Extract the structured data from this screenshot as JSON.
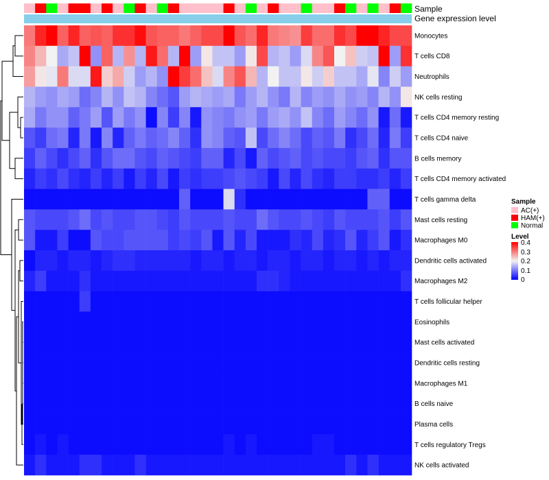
{
  "chart_data": {
    "type": "heatmap",
    "title": "",
    "annotation_tracks": [
      "Sample",
      "Gene expression level"
    ],
    "sample_groups": [
      "AC(+)",
      "HAM(+)",
      "Normal",
      "AC(+)",
      "HAM(+)",
      "HAM(+)",
      "AC(+)",
      "HAM(+)",
      "AC(+)",
      "Normal",
      "HAM(+)",
      "AC(+)",
      "Normal",
      "HAM(+)",
      "AC(+)",
      "AC(+)",
      "AC(+)",
      "AC(+)",
      "HAM(+)",
      "AC(+)",
      "Normal",
      "AC(+)",
      "HAM(+)",
      "AC(+)",
      "AC(+)",
      "Normal",
      "AC(+)",
      "AC(+)",
      "HAM(+)",
      "Normal",
      "AC(+)",
      "Normal",
      "AC(+)",
      "HAM(+)",
      "Normal"
    ],
    "expression_track_color": "#87CEEB",
    "rows": [
      "Monocytes",
      "T cells CD8",
      "Neutrophils",
      "NK cells resting",
      "T cells CD4 memory resting",
      "T cells CD4 naive",
      "B cells memory",
      "T cells CD4 memory activated",
      "T cells gamma delta",
      "Mast cells resting",
      "Macrophages M0",
      "Dendritic cells activated",
      "Macrophages M2",
      "T cells follicular helper",
      "Eosinophils",
      "Mast cells activated",
      "Dendritic cells resting",
      "Macrophages M1",
      "B cells naive",
      "Plasma cells",
      "T cells regulatory  Tregs",
      "NK cells activated"
    ],
    "values": [
      [
        0.3,
        0.37,
        0.4,
        0.32,
        0.37,
        0.32,
        0.33,
        0.32,
        0.36,
        0.36,
        0.39,
        0.33,
        0.32,
        0.32,
        0.3,
        0.32,
        0.34,
        0.34,
        0.4,
        0.33,
        0.31,
        0.37,
        0.3,
        0.29,
        0.28,
        0.35,
        0.31,
        0.31,
        0.36,
        0.34,
        0.4,
        0.4,
        0.37,
        0.34,
        0.34
      ],
      [
        0.29,
        0.25,
        0.2,
        0.14,
        0.16,
        0.4,
        0.12,
        0.32,
        0.15,
        0.28,
        0.15,
        0.38,
        0.31,
        0.15,
        0.4,
        0.13,
        0.21,
        0.16,
        0.16,
        0.13,
        0.21,
        0.34,
        0.15,
        0.16,
        0.13,
        0.18,
        0.29,
        0.33,
        0.2,
        0.24,
        0.17,
        0.16,
        0.4,
        0.13,
        0.36
      ],
      [
        0.27,
        0.21,
        0.19,
        0.3,
        0.18,
        0.18,
        0.38,
        0.23,
        0.26,
        0.17,
        0.13,
        0.15,
        0.12,
        0.4,
        0.35,
        0.31,
        0.24,
        0.18,
        0.29,
        0.33,
        0.25,
        0.15,
        0.2,
        0.16,
        0.16,
        0.21,
        0.17,
        0.23,
        0.16,
        0.16,
        0.14,
        0.19,
        0.11,
        0.17,
        0.13
      ],
      [
        0.15,
        0.13,
        0.12,
        0.14,
        0.13,
        0.09,
        0.11,
        0.15,
        0.12,
        0.16,
        0.15,
        0.11,
        0.09,
        0.07,
        0.13,
        0.15,
        0.14,
        0.13,
        0.14,
        0.1,
        0.13,
        0.15,
        0.12,
        0.1,
        0.15,
        0.11,
        0.13,
        0.12,
        0.14,
        0.12,
        0.13,
        0.11,
        0.15,
        0.12,
        0.21
      ],
      [
        0.14,
        0.1,
        0.12,
        0.12,
        0.08,
        0.1,
        0.13,
        0.07,
        0.13,
        0.1,
        0.12,
        0.01,
        0.11,
        0.05,
        0.11,
        0.02,
        0.12,
        0.11,
        0.1,
        0.12,
        0.13,
        0.1,
        0.13,
        0.14,
        0.12,
        0.16,
        0.11,
        0.09,
        0.13,
        0.11,
        0.09,
        0.12,
        0.02,
        0.09,
        0.02
      ],
      [
        0.07,
        0.05,
        0.09,
        0.1,
        0.03,
        0.1,
        0.02,
        0.11,
        0.03,
        0.08,
        0.1,
        0.08,
        0.09,
        0.11,
        0.08,
        0.04,
        0.12,
        0.11,
        0.08,
        0.07,
        0.16,
        0.06,
        0.09,
        0.11,
        0.09,
        0.06,
        0.08,
        0.07,
        0.1,
        0.04,
        0.06,
        0.09,
        0.03,
        0.1,
        0.05
      ],
      [
        0.05,
        0.08,
        0.06,
        0.04,
        0.06,
        0.08,
        0.04,
        0.07,
        0.09,
        0.09,
        0.07,
        0.06,
        0.08,
        0.07,
        0.06,
        0.05,
        0.08,
        0.08,
        0.03,
        0.06,
        0.02,
        0.08,
        0.06,
        0.07,
        0.08,
        0.06,
        0.07,
        0.06,
        0.06,
        0.05,
        0.07,
        0.08,
        0.04,
        0.07,
        0.07
      ],
      [
        0.03,
        0.05,
        0.04,
        0.06,
        0.04,
        0.03,
        0.05,
        0.03,
        0.05,
        0.02,
        0.05,
        0.03,
        0.06,
        0.02,
        0.05,
        0.04,
        0.05,
        0.05,
        0.06,
        0.07,
        0.06,
        0.05,
        0.02,
        0.06,
        0.03,
        0.06,
        0.04,
        0.03,
        0.05,
        0.05,
        0.04,
        0.04,
        0.05,
        0.03,
        0.05
      ],
      [
        0.01,
        0.01,
        0.01,
        0.01,
        0.01,
        0.01,
        0.01,
        0.01,
        0.01,
        0.01,
        0.01,
        0.01,
        0.01,
        0.01,
        0.08,
        0.01,
        0.01,
        0.01,
        0.18,
        0.04,
        0.01,
        0.01,
        0.01,
        0.01,
        0.01,
        0.01,
        0.01,
        0.01,
        0.01,
        0.01,
        0.01,
        0.08,
        0.08,
        0.01,
        0.01
      ],
      [
        0.07,
        0.06,
        0.06,
        0.06,
        0.07,
        0.09,
        0.06,
        0.07,
        0.06,
        0.06,
        0.07,
        0.07,
        0.06,
        0.05,
        0.07,
        0.06,
        0.06,
        0.06,
        0.07,
        0.06,
        0.06,
        0.09,
        0.07,
        0.06,
        0.06,
        0.07,
        0.06,
        0.05,
        0.07,
        0.06,
        0.06,
        0.06,
        0.07,
        0.05,
        0.07
      ],
      [
        0.07,
        0.02,
        0.02,
        0.05,
        0.01,
        0.01,
        0.07,
        0.06,
        0.06,
        0.07,
        0.07,
        0.07,
        0.07,
        0.05,
        0.06,
        0.05,
        0.07,
        0.02,
        0.07,
        0.03,
        0.06,
        0.02,
        0.02,
        0.02,
        0.04,
        0.03,
        0.06,
        0.03,
        0.04,
        0.07,
        0.03,
        0.05,
        0.07,
        0.02,
        0.04
      ],
      [
        0.01,
        0.03,
        0.03,
        0.02,
        0.03,
        0.03,
        0.02,
        0.03,
        0.04,
        0.04,
        0.03,
        0.03,
        0.03,
        0.03,
        0.03,
        0.02,
        0.03,
        0.03,
        0.02,
        0.03,
        0.03,
        0.02,
        0.03,
        0.03,
        0.02,
        0.03,
        0.03,
        0.02,
        0.03,
        0.03,
        0.02,
        0.03,
        0.02,
        0.03,
        0.03
      ],
      [
        0.03,
        0.05,
        0.02,
        0.02,
        0.02,
        0.04,
        0.02,
        0.02,
        0.02,
        0.02,
        0.02,
        0.02,
        0.02,
        0.02,
        0.02,
        0.02,
        0.02,
        0.02,
        0.02,
        0.02,
        0.02,
        0.04,
        0.04,
        0.03,
        0.02,
        0.02,
        0.02,
        0.02,
        0.02,
        0.02,
        0.02,
        0.02,
        0.02,
        0.02,
        0.04
      ],
      [
        0.01,
        0.01,
        0.01,
        0.01,
        0.01,
        0.05,
        0.01,
        0.01,
        0.01,
        0.01,
        0.01,
        0.01,
        0.01,
        0.01,
        0.01,
        0.01,
        0.01,
        0.01,
        0.01,
        0.01,
        0.01,
        0.01,
        0.01,
        0.01,
        0.01,
        0.01,
        0.01,
        0.01,
        0.01,
        0.01,
        0.01,
        0.01,
        0.01,
        0.01,
        0.01
      ],
      [
        0.01,
        0.01,
        0.01,
        0.01,
        0.01,
        0.01,
        0.01,
        0.01,
        0.01,
        0.01,
        0.01,
        0.01,
        0.01,
        0.01,
        0.01,
        0.01,
        0.01,
        0.01,
        0.01,
        0.01,
        0.01,
        0.01,
        0.01,
        0.01,
        0.01,
        0.01,
        0.01,
        0.01,
        0.01,
        0.01,
        0.01,
        0.01,
        0.01,
        0.01,
        0.01
      ],
      [
        0.01,
        0.01,
        0.01,
        0.01,
        0.01,
        0.01,
        0.01,
        0.01,
        0.01,
        0.01,
        0.01,
        0.01,
        0.01,
        0.01,
        0.01,
        0.01,
        0.01,
        0.01,
        0.01,
        0.01,
        0.01,
        0.01,
        0.01,
        0.01,
        0.01,
        0.01,
        0.01,
        0.01,
        0.01,
        0.01,
        0.01,
        0.01,
        0.01,
        0.01,
        0.01
      ],
      [
        0.01,
        0.01,
        0.01,
        0.01,
        0.01,
        0.01,
        0.01,
        0.01,
        0.01,
        0.01,
        0.01,
        0.01,
        0.01,
        0.01,
        0.01,
        0.01,
        0.01,
        0.01,
        0.01,
        0.01,
        0.01,
        0.01,
        0.01,
        0.01,
        0.01,
        0.01,
        0.01,
        0.01,
        0.01,
        0.01,
        0.01,
        0.01,
        0.01,
        0.01,
        0.01
      ],
      [
        0.01,
        0.01,
        0.01,
        0.01,
        0.01,
        0.01,
        0.01,
        0.01,
        0.01,
        0.01,
        0.01,
        0.01,
        0.01,
        0.01,
        0.01,
        0.01,
        0.01,
        0.01,
        0.01,
        0.01,
        0.01,
        0.01,
        0.01,
        0.01,
        0.01,
        0.01,
        0.01,
        0.01,
        0.01,
        0.01,
        0.01,
        0.01,
        0.01,
        0.01,
        0.01
      ],
      [
        0.01,
        0.01,
        0.01,
        0.01,
        0.01,
        0.01,
        0.01,
        0.01,
        0.01,
        0.01,
        0.01,
        0.01,
        0.01,
        0.01,
        0.01,
        0.01,
        0.01,
        0.01,
        0.01,
        0.01,
        0.01,
        0.01,
        0.01,
        0.01,
        0.01,
        0.01,
        0.01,
        0.01,
        0.01,
        0.01,
        0.01,
        0.01,
        0.01,
        0.01,
        0.01
      ],
      [
        0.01,
        0.01,
        0.01,
        0.01,
        0.01,
        0.01,
        0.01,
        0.01,
        0.01,
        0.01,
        0.01,
        0.01,
        0.01,
        0.01,
        0.01,
        0.01,
        0.01,
        0.01,
        0.01,
        0.01,
        0.01,
        0.01,
        0.01,
        0.01,
        0.01,
        0.01,
        0.01,
        0.01,
        0.01,
        0.01,
        0.01,
        0.01,
        0.01,
        0.01,
        0.01
      ],
      [
        0.01,
        0.02,
        0.01,
        0.02,
        0.01,
        0.01,
        0.01,
        0.01,
        0.01,
        0.01,
        0.01,
        0.01,
        0.01,
        0.01,
        0.01,
        0.01,
        0.01,
        0.01,
        0.02,
        0.01,
        0.02,
        0.01,
        0.01,
        0.01,
        0.01,
        0.01,
        0.02,
        0.02,
        0.01,
        0.01,
        0.01,
        0.01,
        0.01,
        0.01,
        0.01
      ],
      [
        0.02,
        0.04,
        0.02,
        0.02,
        0.02,
        0.04,
        0.04,
        0.02,
        0.02,
        0.02,
        0.04,
        0.02,
        0.02,
        0.02,
        0.02,
        0.02,
        0.02,
        0.02,
        0.02,
        0.02,
        0.02,
        0.02,
        0.02,
        0.02,
        0.02,
        0.02,
        0.02,
        0.02,
        0.02,
        0.04,
        0.02,
        0.04,
        0.02,
        0.02,
        0.02
      ]
    ],
    "color_scale": {
      "min": 0,
      "mid": 0.2,
      "max": 0.4,
      "low": "#0000FF",
      "middle": "#F2F2F2",
      "high": "#FF0000"
    },
    "dendrogram": "rows",
    "legend": {
      "position": "right",
      "sample": {
        "title": "Sample",
        "entries": [
          {
            "label": "AC(+)",
            "color": "#FFC0CB"
          },
          {
            "label": "HAM(+)",
            "color": "#FF0000"
          },
          {
            "label": "Normal",
            "color": "#00FF00"
          }
        ]
      },
      "level": {
        "title": "Level",
        "ticks": [
          "0.4",
          "0.3",
          "0.2",
          "0.1",
          "0"
        ],
        "tick_values": [
          0.4,
          0.3,
          0.2,
          0.1,
          0
        ]
      }
    }
  }
}
